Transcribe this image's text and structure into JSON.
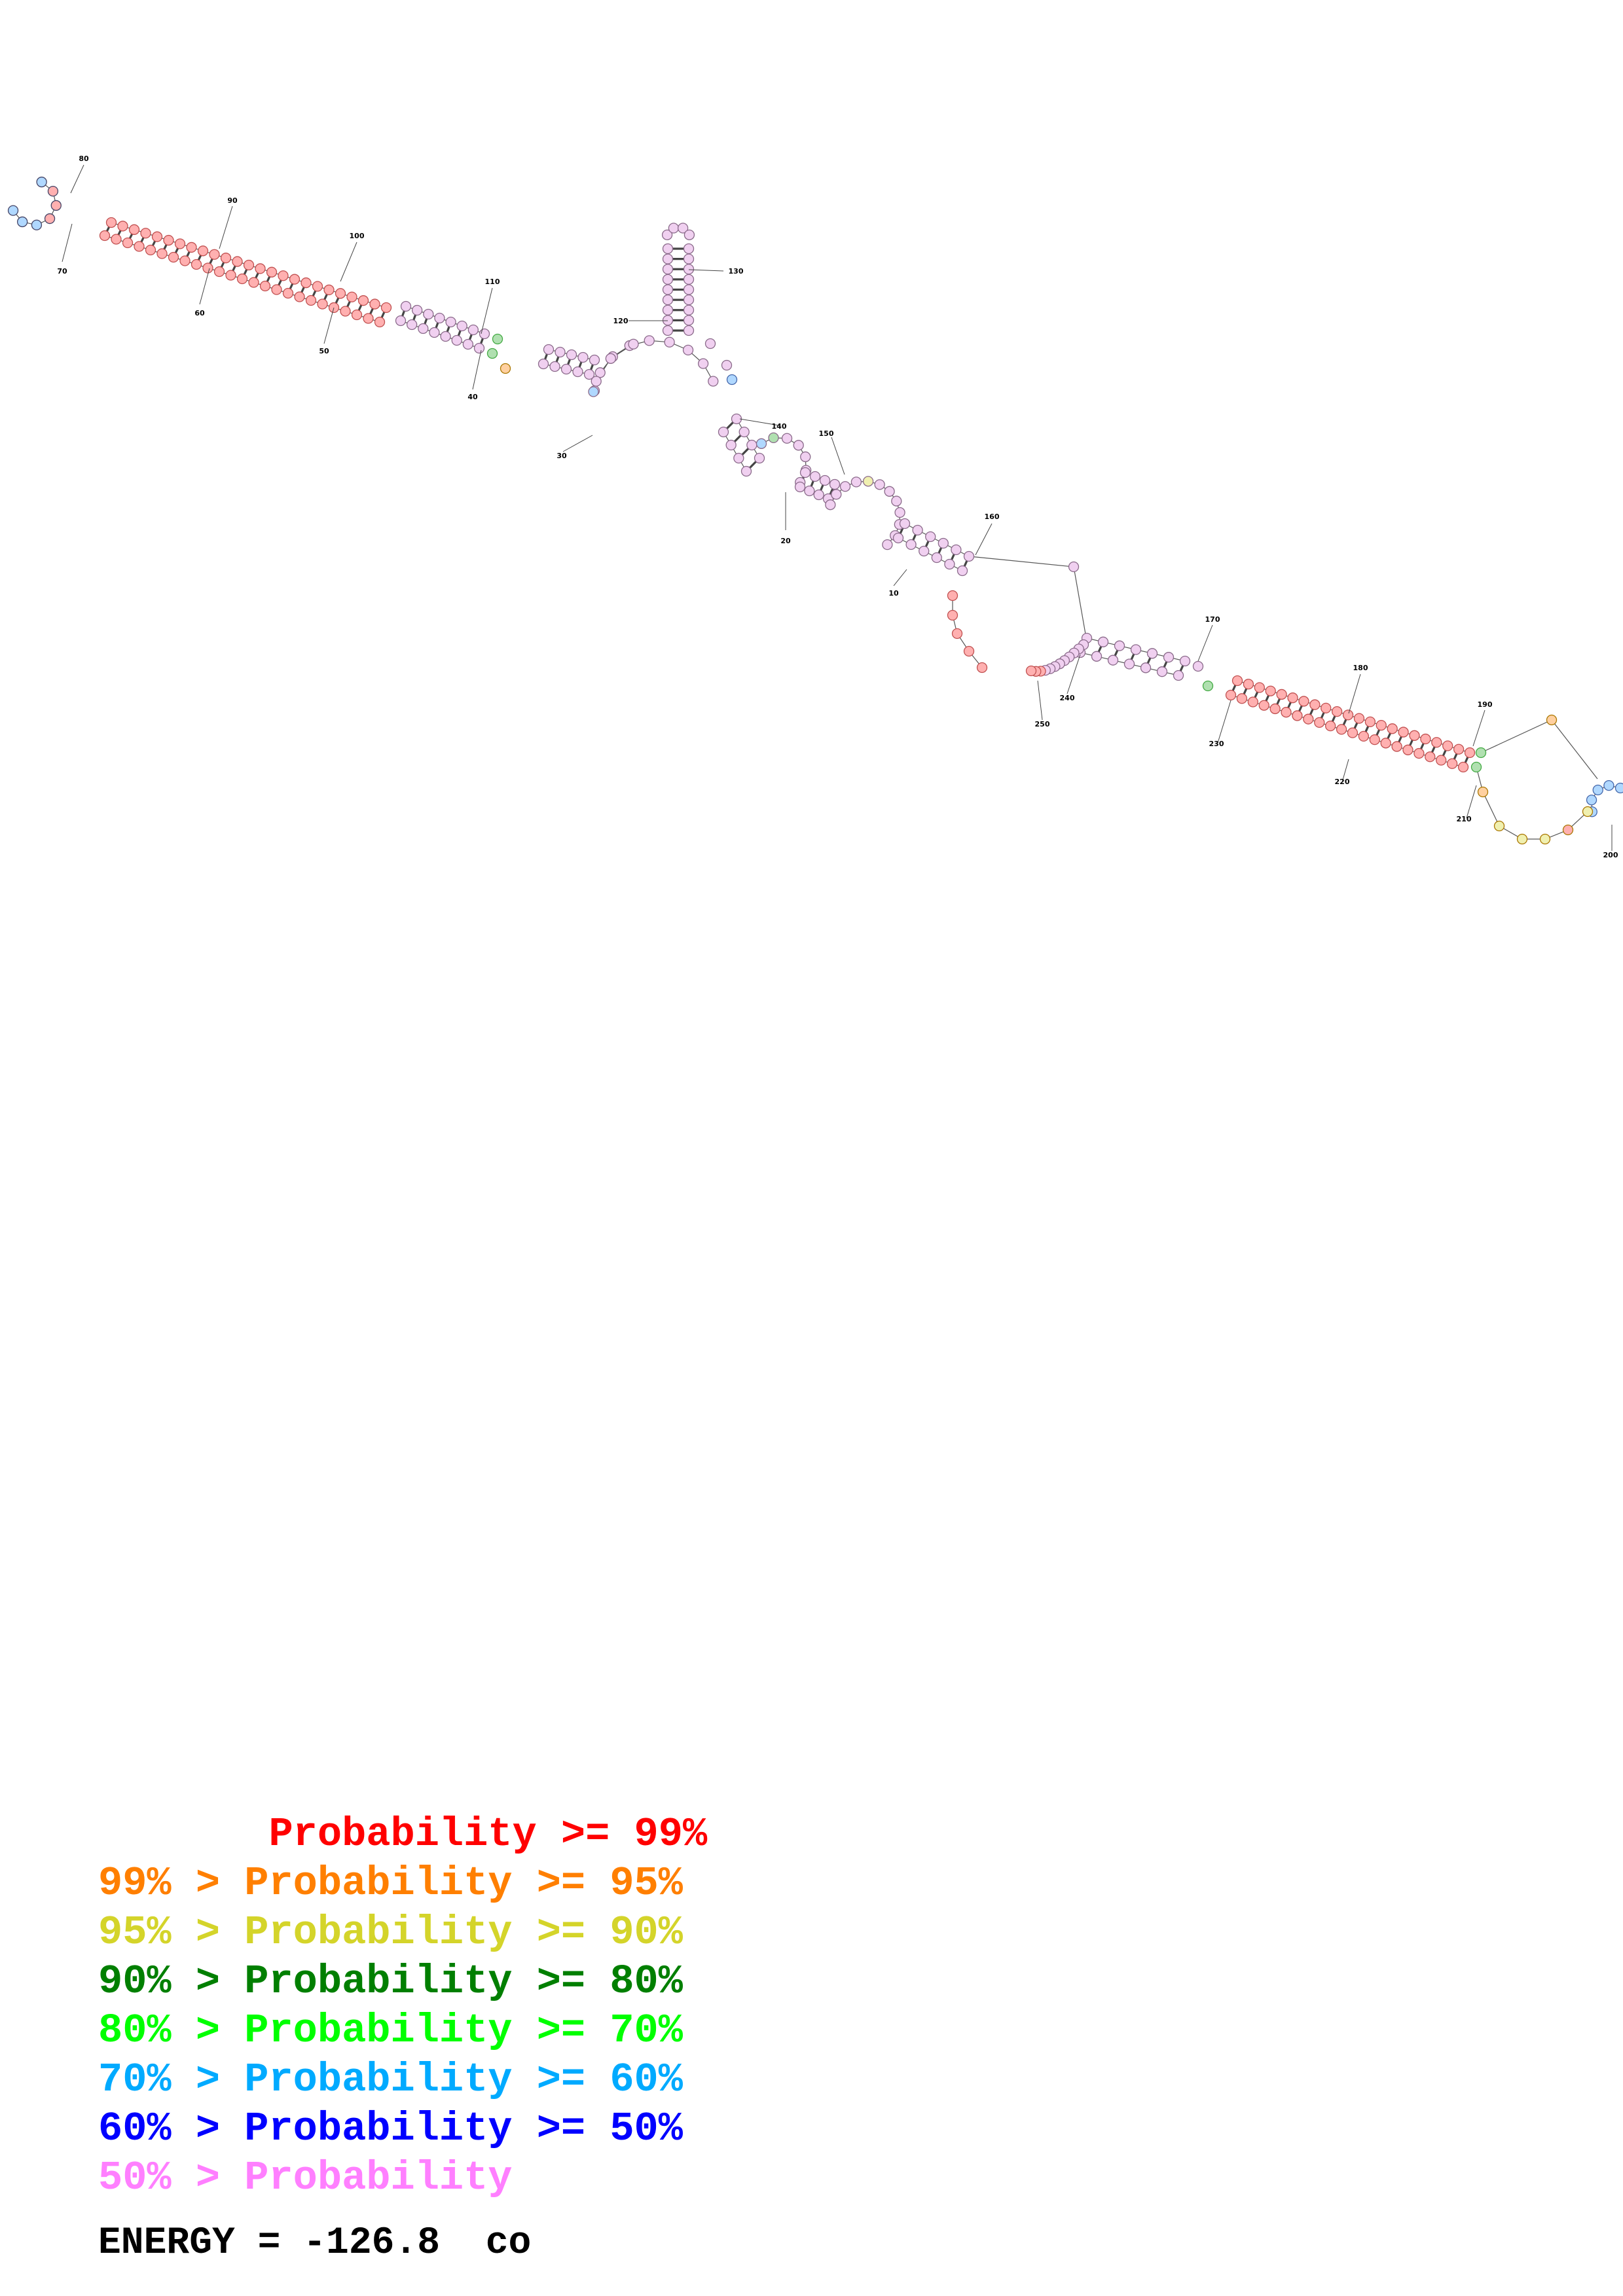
{
  "diagram": {
    "type": "rna-secondary-structure",
    "position_labels": [
      "10",
      "20",
      "30",
      "40",
      "50",
      "60",
      "70",
      "80",
      "90",
      "100",
      "110",
      "120",
      "130",
      "140",
      "150",
      "160",
      "170",
      "180",
      "190",
      "200",
      "210",
      "220",
      "230",
      "240",
      "250"
    ]
  },
  "legend": {
    "rows": [
      {
        "prefix": "       ",
        "text": "Probability >= 99%",
        "color": "#ff0000"
      },
      {
        "prefix": "99% > ",
        "text": "Probability >= 95%",
        "color": "#ff7f00"
      },
      {
        "prefix": "95% > ",
        "text": "Probability >= 90%",
        "color": "#d4d42a"
      },
      {
        "prefix": "90% > ",
        "text": "Probability >= 80%",
        "color": "#007f00"
      },
      {
        "prefix": "80% > ",
        "text": "Probability >= 70%",
        "color": "#00ff00"
      },
      {
        "prefix": "70% > ",
        "text": "Probability >= 60%",
        "color": "#00aaff"
      },
      {
        "prefix": "60% > ",
        "text": "Probability >= 50%",
        "color": "#0000ff"
      },
      {
        "prefix": "50% > ",
        "text": "Probability",
        "color": "#ff7fff"
      }
    ]
  },
  "energy": {
    "text": "ENERGY = -126.8  co"
  },
  "colors": {
    "p99": "#ff0000",
    "p95": "#ff7f00",
    "p90": "#d4d42a",
    "p80": "#007f00",
    "p70": "#00ff00",
    "p60": "#00aaff",
    "p50": "#0000ff",
    "plow": "#ff7fff",
    "red_fill": "#ffb0b0",
    "pink_fill": "#f0d0f0",
    "blue_fill": "#b0d8ff",
    "green_fill": "#b0e0b0",
    "yellow_fill": "#f0f0b0",
    "orange_fill": "#ffd0a0"
  }
}
